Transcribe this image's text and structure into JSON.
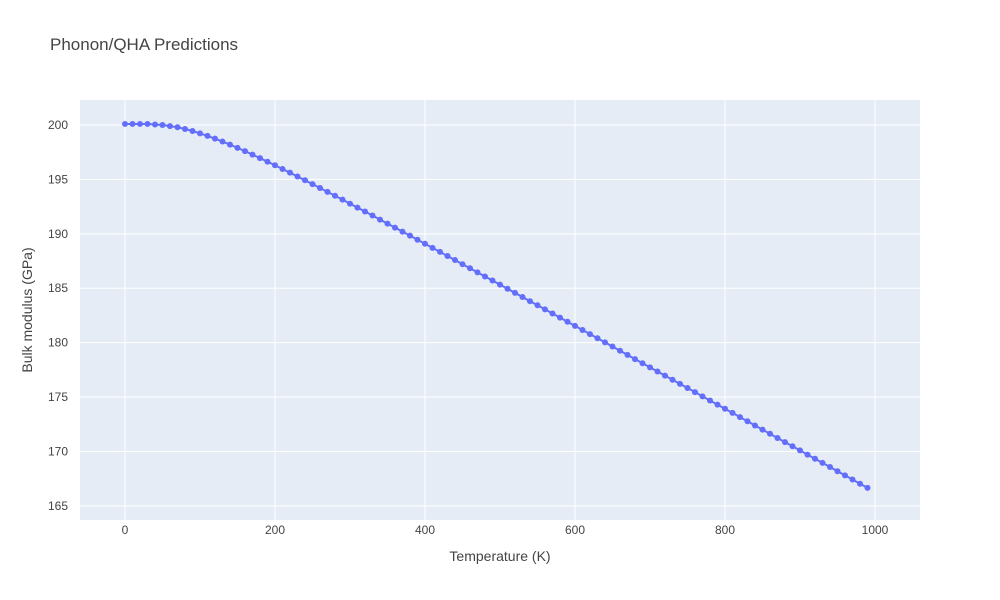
{
  "chart_data": {
    "type": "line",
    "mode": "lines+markers",
    "title": "Phonon/QHA Predictions",
    "xlabel": "Temperature (K)",
    "ylabel": "Bulk modulus (GPa)",
    "xlim": [
      -60,
      1060
    ],
    "ylim": [
      163.7,
      202.3
    ],
    "xticks": [
      0,
      200,
      400,
      600,
      800,
      1000
    ],
    "yticks": [
      165,
      170,
      175,
      180,
      185,
      190,
      195,
      200
    ],
    "grid": true,
    "legend": "none",
    "colors": {
      "series": "#636efa",
      "plot_bg": "#e5ecf6",
      "grid": "#ffffff"
    },
    "series": [
      {
        "x_start": 0,
        "x_step": 10,
        "values": [
          200.1,
          200.1,
          200.1,
          200.1,
          200.05,
          200.0,
          199.9,
          199.8,
          199.63,
          199.45,
          199.23,
          199.0,
          198.75,
          198.48,
          198.2,
          197.9,
          197.6,
          197.28,
          196.96,
          196.63,
          196.3,
          195.96,
          195.62,
          195.27,
          194.92,
          194.57,
          194.21,
          193.86,
          193.5,
          193.14,
          192.77,
          192.41,
          192.05,
          191.68,
          191.31,
          190.94,
          190.57,
          190.2,
          189.83,
          189.46,
          189.09,
          188.71,
          188.34,
          187.96,
          187.59,
          187.21,
          186.84,
          186.46,
          186.08,
          185.71,
          185.33,
          184.95,
          184.57,
          184.19,
          183.81,
          183.44,
          183.06,
          182.68,
          182.3,
          181.92,
          181.54,
          181.16,
          180.78,
          180.4,
          180.02,
          179.64,
          179.26,
          178.88,
          178.49,
          178.11,
          177.73,
          177.35,
          176.97,
          176.59,
          176.21,
          175.83,
          175.45,
          175.06,
          174.68,
          174.3,
          173.92,
          173.54,
          173.15,
          172.77,
          172.39,
          172.01,
          171.63,
          171.24,
          170.86,
          170.48,
          170.1,
          169.71,
          169.33,
          168.95,
          168.57,
          168.18,
          167.8,
          167.42,
          167.03,
          166.65
        ]
      }
    ]
  }
}
